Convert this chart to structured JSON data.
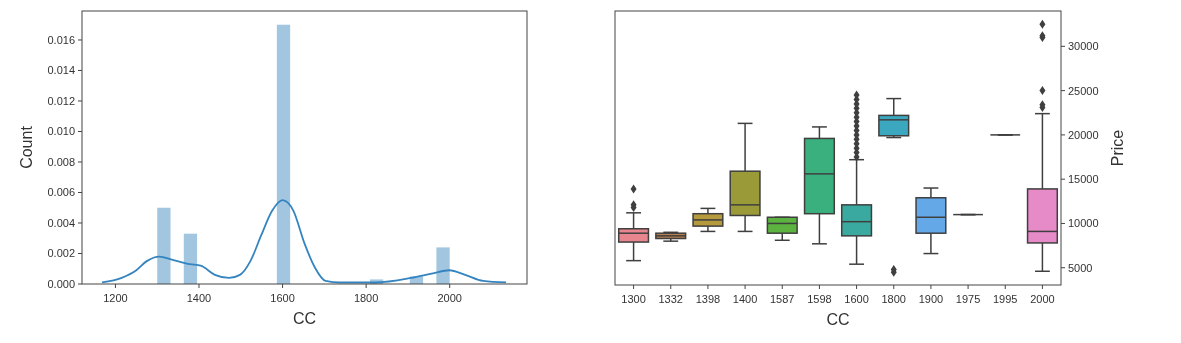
{
  "chart_data": [
    {
      "type": "histogram",
      "bins": [
        1300,
        1331.82,
        1363.64,
        1395.45,
        1427.27,
        1459.09,
        1490.91,
        1522.73,
        1554.55,
        1586.36,
        1618.18,
        1650,
        1681.82,
        1713.64,
        1745.45,
        1777.27,
        1809.09,
        1840.91,
        1872.73,
        1904.55,
        1936.36,
        1968.18,
        2000
      ],
      "values": [
        0.005,
        0,
        0.0033,
        0,
        0,
        0,
        0,
        0,
        0,
        0.017,
        0,
        0,
        0,
        0,
        0,
        0,
        0.0003,
        0,
        0,
        0.0005,
        0,
        0.0024
      ],
      "color": "#a3c6e0",
      "series": [
        {
          "type": "line",
          "color": "#3484c0",
          "x": [
            1168,
            1215,
            1250,
            1275,
            1305,
            1335,
            1378,
            1404,
            1438,
            1472,
            1498,
            1523,
            1549,
            1575,
            1600,
            1626,
            1652,
            1677,
            1703,
            1737,
            1823,
            1908,
            1960,
            1999,
            2037,
            2080,
            2135
          ],
          "values": [
            0.0001,
            0.0004,
            0.0009,
            0.0015,
            0.0018,
            0.0016,
            0.0013,
            0.0012,
            0.0006,
            0.0004,
            0.0006,
            0.0015,
            0.0032,
            0.0048,
            0.0055,
            0.0048,
            0.0027,
            0.0011,
            0.0002,
            0.0001,
            0.0001,
            0.0004,
            0.0007,
            0.0009,
            0.0006,
            0.0002,
            0.0001
          ]
        }
      ],
      "xlim": [
        1120,
        2185
      ],
      "xticks": [
        1200,
        1400,
        1600,
        1800,
        2000
      ],
      "ylim": [
        0,
        0.0179
      ],
      "yticks": [
        {
          "value": 0,
          "label": "0.000"
        },
        {
          "value": 0.002,
          "label": "0.002"
        },
        {
          "value": 0.004,
          "label": "0.004"
        },
        {
          "value": 0.006,
          "label": "0.006"
        },
        {
          "value": 0.008,
          "label": "0.008"
        },
        {
          "value": 0.01,
          "label": "0.010"
        },
        {
          "value": 0.012,
          "label": "0.012"
        },
        {
          "value": 0.014,
          "label": "0.014"
        },
        {
          "value": 0.016,
          "label": "0.016"
        }
      ],
      "xlabel": "CC",
      "ylabel": "Count"
    },
    {
      "type": "box",
      "categories": [
        "1300",
        "1332",
        "1398",
        "1400",
        "1587",
        "1598",
        "1600",
        "1800",
        "1900",
        "1975",
        "1995",
        "2000"
      ],
      "colors": [
        "#e8868f",
        "#b8814f",
        "#b59a3d",
        "#9a9a38",
        "#5cb33f",
        "#3ab07e",
        "#3aaaa0",
        "#3ca8c0",
        "#65a8e8",
        "#3f3f3f",
        "#3f3f3f",
        "#e68ac8"
      ],
      "boxes": [
        {
          "low": 5800,
          "q1": 7900,
          "median": 8900,
          "q3": 9400,
          "high": 11200,
          "outliers": [
            11800,
            12100,
            13900
          ]
        },
        {
          "low": 8000,
          "q1": 8300,
          "median": 8600,
          "q3": 8900,
          "high": 9000
        },
        {
          "low": 9100,
          "q1": 9700,
          "median": 10400,
          "q3": 11100,
          "high": 11700
        },
        {
          "low": 9100,
          "q1": 10900,
          "median": 12100,
          "q3": 15900,
          "high": 21300
        },
        {
          "low": 8100,
          "q1": 8900,
          "median": 10000,
          "q3": 10700,
          "high": 10700
        },
        {
          "low": 7700,
          "q1": 11100,
          "median": 15600,
          "q3": 19600,
          "high": 20900
        },
        {
          "low": 5400,
          "q1": 8600,
          "median": 10200,
          "q3": 12100,
          "high": 17200,
          "outliers": [
            17500,
            18000,
            18500,
            19000,
            19500,
            20000,
            20500,
            21000,
            21500,
            22000,
            22500,
            23000,
            23500,
            24000,
            24500
          ]
        },
        {
          "low": 19700,
          "q1": 19900,
          "median": 21700,
          "q3": 22200,
          "high": 24100,
          "outliers": [
            4500,
            4800
          ]
        },
        {
          "low": 6600,
          "q1": 8900,
          "median": 10700,
          "q3": 12900,
          "high": 14000
        },
        {
          "low": 11000,
          "q1": 11000,
          "median": 11000,
          "q3": 11000,
          "high": 11000
        },
        {
          "low": 20000,
          "q1": 20000,
          "median": 20000,
          "q3": 20000,
          "high": 20000
        },
        {
          "low": 4600,
          "q1": 7800,
          "median": 9100,
          "q3": 13900,
          "high": 22400,
          "outliers": [
            23100,
            23400,
            25000,
            31000,
            31200,
            32500
          ]
        }
      ],
      "ylim": [
        3050,
        33990
      ],
      "yticks": [
        5000,
        10000,
        15000,
        20000,
        25000,
        30000
      ],
      "xlabel": "CC",
      "ylabel": "Price"
    }
  ]
}
